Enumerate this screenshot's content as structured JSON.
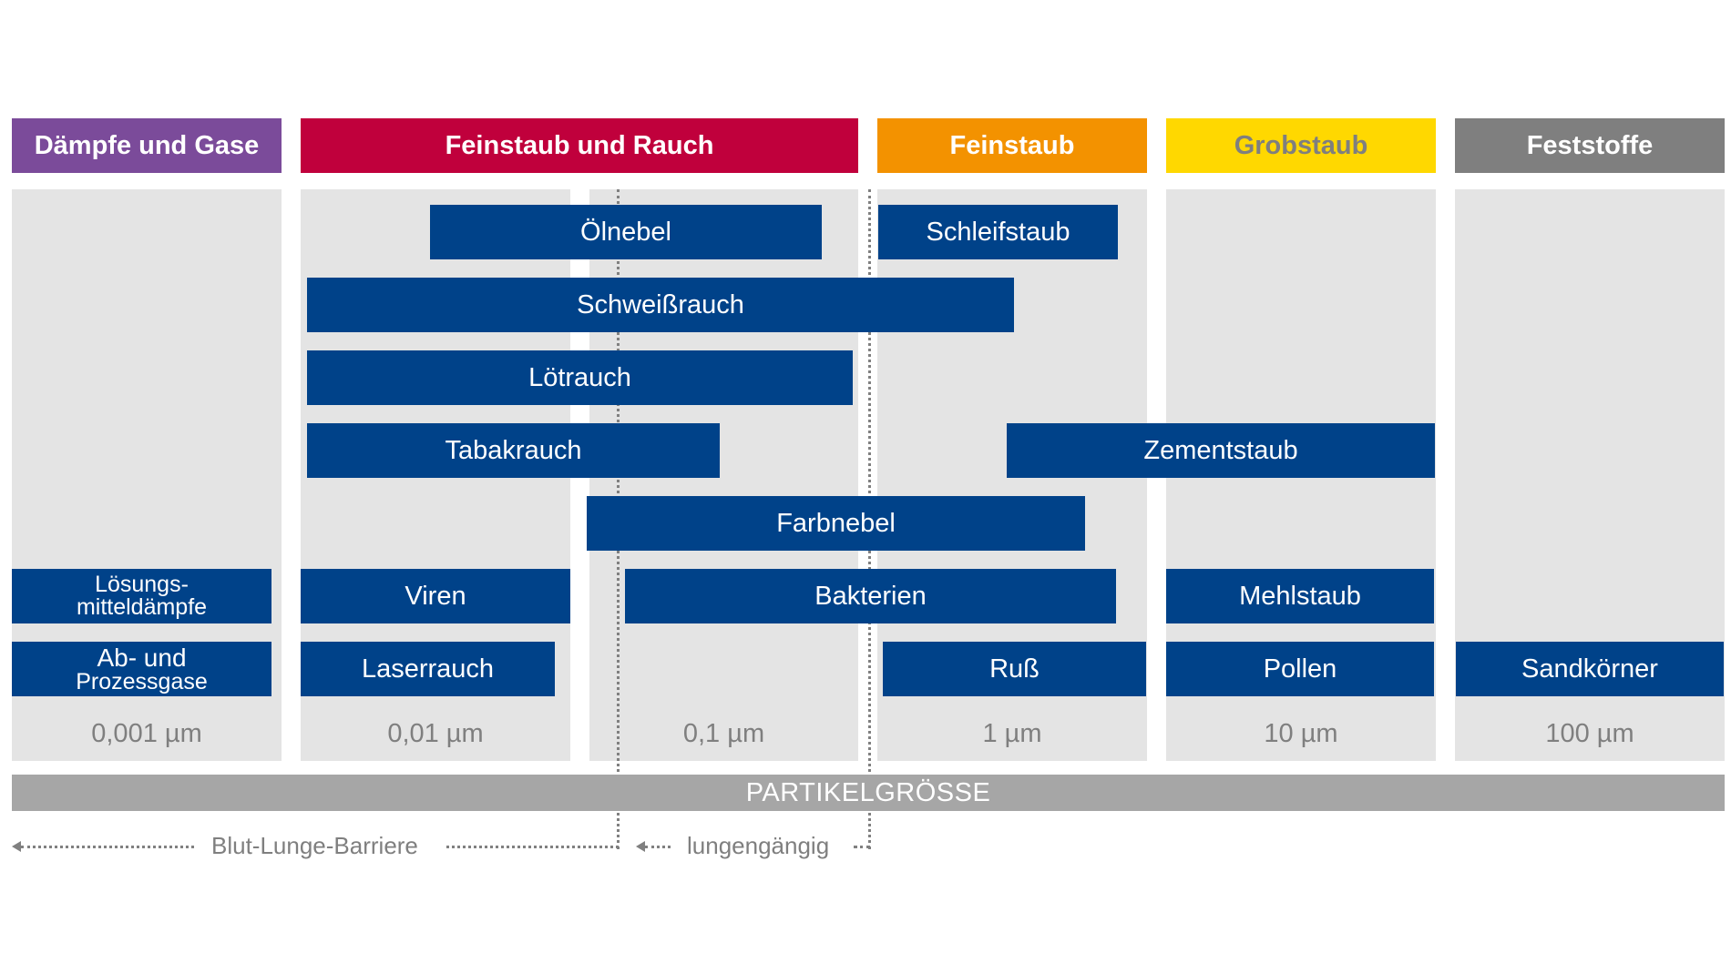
{
  "categories": [
    {
      "label": "Dämpfe und Gase",
      "bg": "#7b4b9a",
      "fg": "#ffffff"
    },
    {
      "label": "Feinstaub und Rauch",
      "bg": "#c0003c",
      "fg": "#ffffff"
    },
    {
      "label": "Feinstaub",
      "bg": "#f39200",
      "fg": "#ffffff"
    },
    {
      "label": "Grobstaub",
      "bg": "#ffd800",
      "fg": "#7f7f7f"
    },
    {
      "label": "Feststoffe",
      "bg": "#7f7f7f",
      "fg": "#ffffff"
    }
  ],
  "ticks": [
    "0,001 µm",
    "0,01 µm",
    "0,1 µm",
    "1 µm",
    "10 µm",
    "100 µm"
  ],
  "bars": [
    {
      "label": "Ölnebel"
    },
    {
      "label": "Schleifstaub"
    },
    {
      "label": "Schweißrauch"
    },
    {
      "label": "Lötrauch"
    },
    {
      "label": "Tabakrauch"
    },
    {
      "label": "Zementstaub"
    },
    {
      "label": "Farbnebel"
    },
    {
      "label_lines": [
        "Lösungs-",
        "mitteldämpfe"
      ]
    },
    {
      "label": "Viren"
    },
    {
      "label": "Bakterien"
    },
    {
      "label": "Mehlstaub"
    },
    {
      "label_lines": [
        "Ab- und",
        "Prozessgase"
      ]
    },
    {
      "label": "Laserrauch"
    },
    {
      "label": "Ruß"
    },
    {
      "label": "Pollen"
    },
    {
      "label": "Sandkörner"
    }
  ],
  "axis_label": "PARTIKELGRÖSSE",
  "annotations": {
    "blood_lung_barrier": "Blut-Lunge-Barriere",
    "respirable": "lungengängig"
  },
  "colors": {
    "bar": "#004289",
    "column_bg": "#e4e4e4",
    "axis_bg": "#a6a6a6",
    "tick_text": "#7f7f7f"
  }
}
